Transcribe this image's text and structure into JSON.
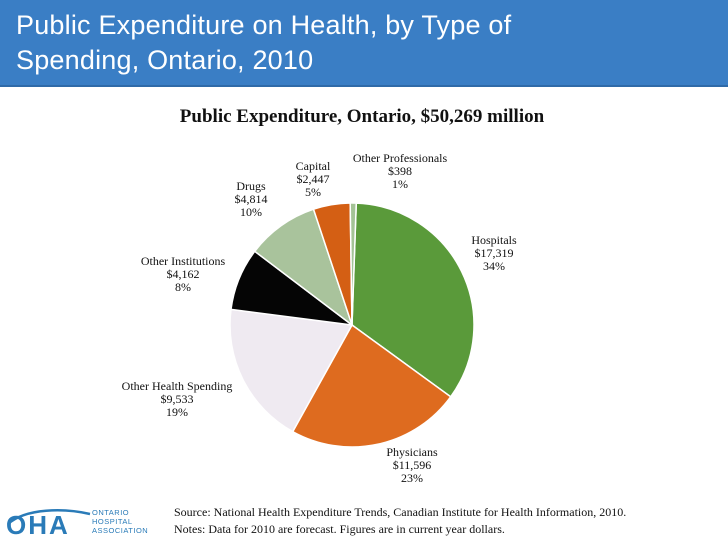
{
  "slide": {
    "title_line1": "Public Expenditure on Health, by Type of",
    "title_line2": "Spending, Ontario, 2010"
  },
  "chart_data": {
    "type": "pie",
    "title": "Public Expenditure, Ontario, $50,269 million",
    "slices": [
      {
        "name": "Hospitals",
        "value_label": "$17,319",
        "pct_label": "34%",
        "value": 17319,
        "color": "#5a9a3a"
      },
      {
        "name": "Physicians",
        "value_label": "$11,596",
        "pct_label": "23%",
        "value": 11596,
        "color": "#de6b1f"
      },
      {
        "name": "Other Health Spending",
        "value_label": "$9,533",
        "pct_label": "19%",
        "value": 9533,
        "color": "#efeaf1"
      },
      {
        "name": "Other  Institutions",
        "value_label": "$4,162",
        "pct_label": "8%",
        "value": 4162,
        "color": "#050505"
      },
      {
        "name": "Drugs",
        "value_label": "$4,814",
        "pct_label": "10%",
        "value": 4814,
        "color": "#a9c39c"
      },
      {
        "name": "Capital",
        "value_label": "$2,447",
        "pct_label": "5%",
        "value": 2447,
        "color": "#d45f14"
      },
      {
        "name": "Other Professionals",
        "value_label": "$398",
        "pct_label": "1%",
        "value": 398,
        "color": "#a4c396"
      }
    ]
  },
  "logo": {
    "mark": "OHA",
    "line1": "ONTARIO",
    "line2": "HOSPITAL",
    "line3": "ASSOCIATION"
  },
  "footnotes": {
    "source": "Source: National Health Expenditure Trends, Canadian Institute for Health Information, 2010.",
    "notes": "Notes: Data for 2010 are forecast. Figures are in current year dollars."
  }
}
